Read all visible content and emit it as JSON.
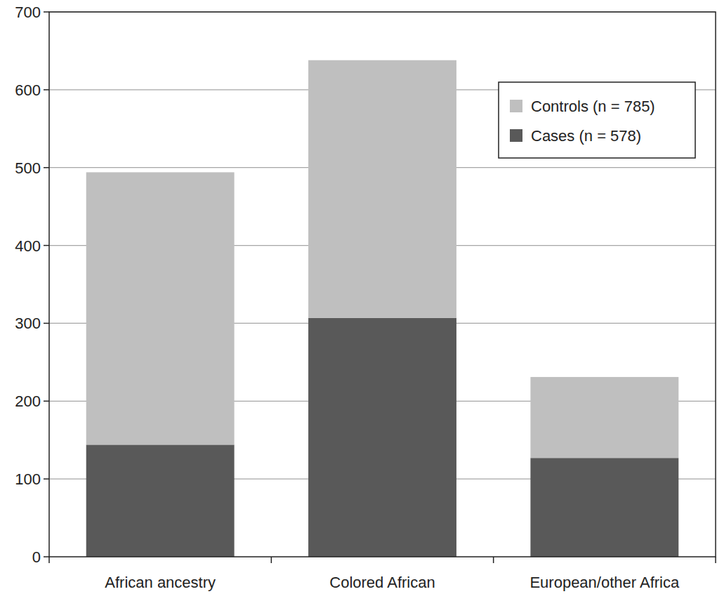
{
  "chart_data": {
    "type": "bar",
    "stacked": true,
    "grid": true,
    "legend": "upper right",
    "categories": [
      "African ancestry",
      "Colored African",
      "European/other Africa"
    ],
    "series": [
      {
        "name": "Cases (n = 578)",
        "color": "#595959",
        "values": [
          144,
          307,
          127
        ]
      },
      {
        "name": "Controls (n = 785)",
        "color": "#bfbfbf",
        "values": [
          350,
          331,
          104
        ]
      }
    ],
    "ylim": [
      0,
      700
    ],
    "yticks": [
      0,
      100,
      200,
      300,
      400,
      500,
      600,
      700
    ]
  }
}
